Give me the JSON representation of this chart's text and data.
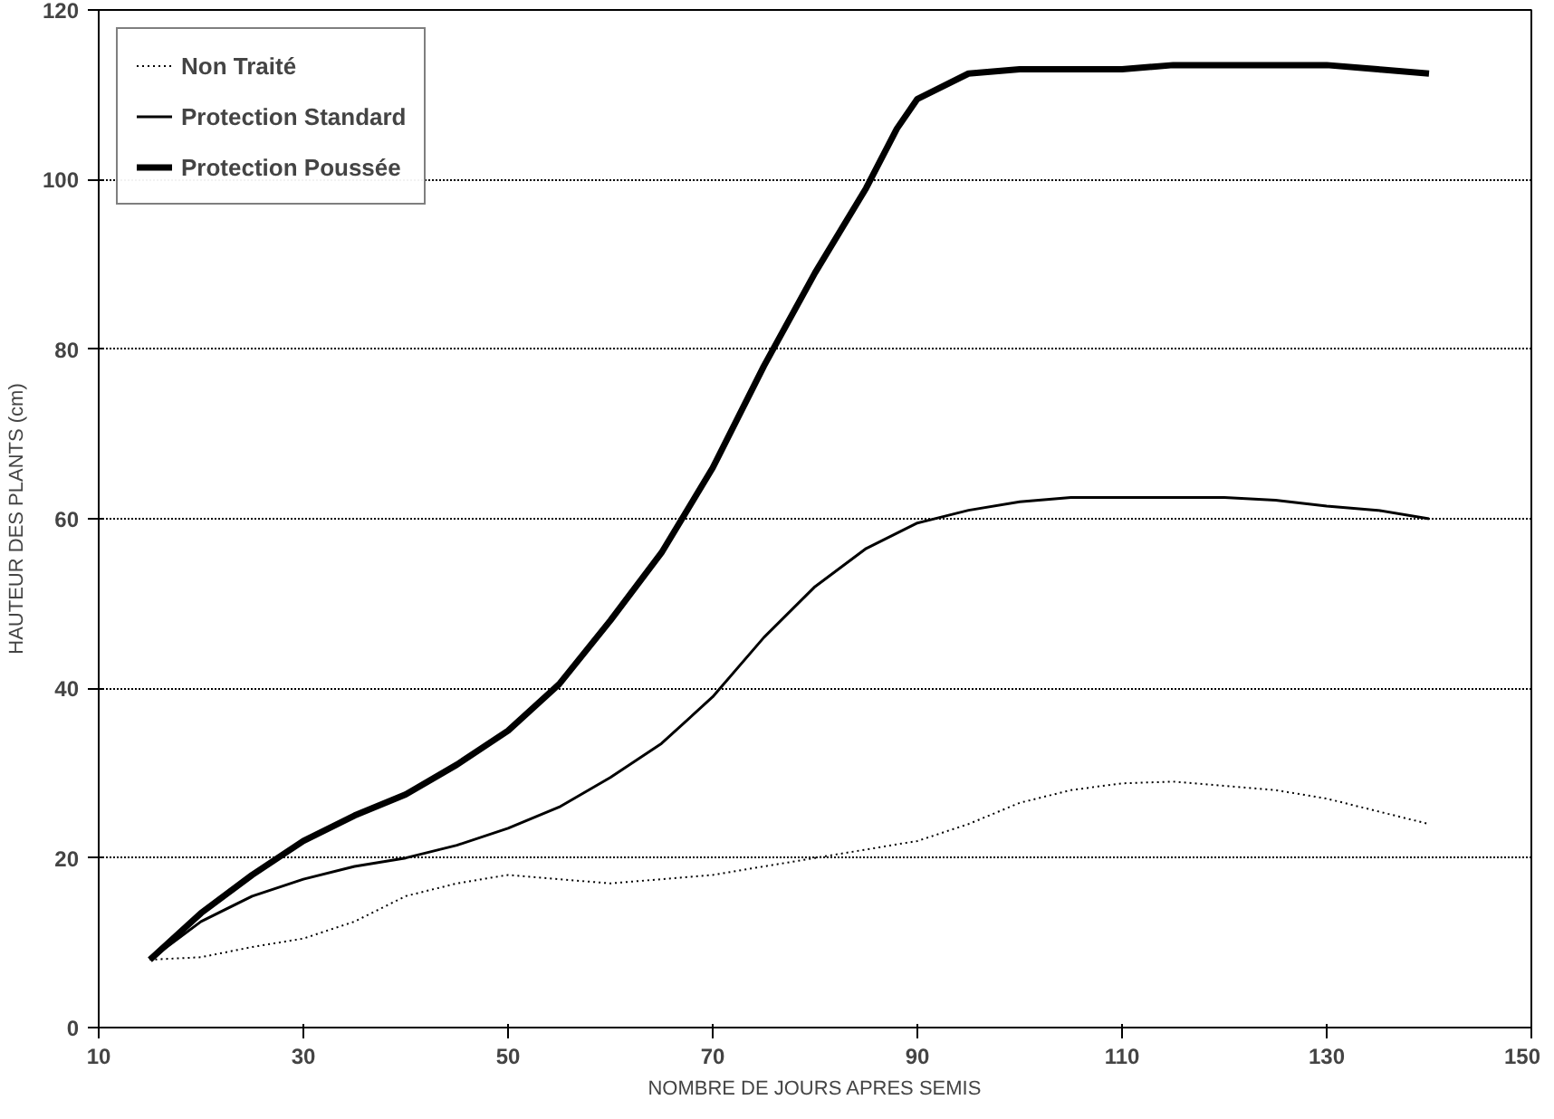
{
  "chart_data": {
    "type": "line",
    "xlabel": "NOMBRE DE JOURS APRES SEMIS",
    "ylabel": "HAUTEUR DES PLANTS (cm)",
    "xlim": [
      10,
      150
    ],
    "xticks": [
      10,
      30,
      50,
      70,
      90,
      110,
      130,
      150
    ],
    "ylim": [
      0,
      120
    ],
    "yticks": [
      0,
      20,
      40,
      60,
      80,
      100,
      120
    ],
    "grid": "y",
    "legend": "top left",
    "marker": "none",
    "series": [
      {
        "name": "Non Traité",
        "color": "#000000",
        "line_style": "dotted",
        "x": [
          15,
          20,
          25,
          30,
          35,
          40,
          45,
          50,
          55,
          60,
          65,
          70,
          75,
          80,
          85,
          90,
          95,
          100,
          105,
          110,
          115,
          120,
          125,
          130,
          135,
          140
        ],
        "values": [
          8,
          8.3,
          9.5,
          10.5,
          12.5,
          15.5,
          17,
          18,
          17.5,
          17,
          17.5,
          18,
          19,
          20,
          21,
          22,
          24,
          26.5,
          28,
          28.8,
          29,
          28.5,
          28,
          27,
          25.5,
          24
        ]
      },
      {
        "name": "Protection Standard",
        "color": "#000000",
        "line_style": "solid",
        "x": [
          15,
          20,
          25,
          30,
          35,
          40,
          45,
          50,
          55,
          60,
          65,
          70,
          75,
          80,
          85,
          90,
          95,
          100,
          105,
          110,
          115,
          120,
          125,
          130,
          135,
          140
        ],
        "values": [
          8,
          12.5,
          15.5,
          17.5,
          19,
          20,
          21.5,
          23.5,
          26,
          29.5,
          33.5,
          39,
          46,
          52,
          56.5,
          59.5,
          61,
          62,
          62.5,
          62.5,
          62.5,
          62.5,
          62.2,
          61.5,
          61,
          60
        ]
      },
      {
        "name": "Protection Poussée",
        "color": "#000000",
        "line_style": "solid",
        "x": [
          15,
          20,
          25,
          30,
          35,
          40,
          45,
          50,
          55,
          60,
          65,
          70,
          75,
          80,
          85,
          88,
          90,
          95,
          100,
          110,
          115,
          120,
          130,
          135,
          140
        ],
        "values": [
          8,
          13.5,
          18,
          22,
          25,
          27.5,
          31,
          35,
          40.5,
          48,
          56,
          66,
          78,
          89,
          99,
          106,
          109.5,
          112.5,
          113,
          113,
          113.5,
          113.5,
          113.5,
          113,
          112.5
        ]
      }
    ]
  }
}
